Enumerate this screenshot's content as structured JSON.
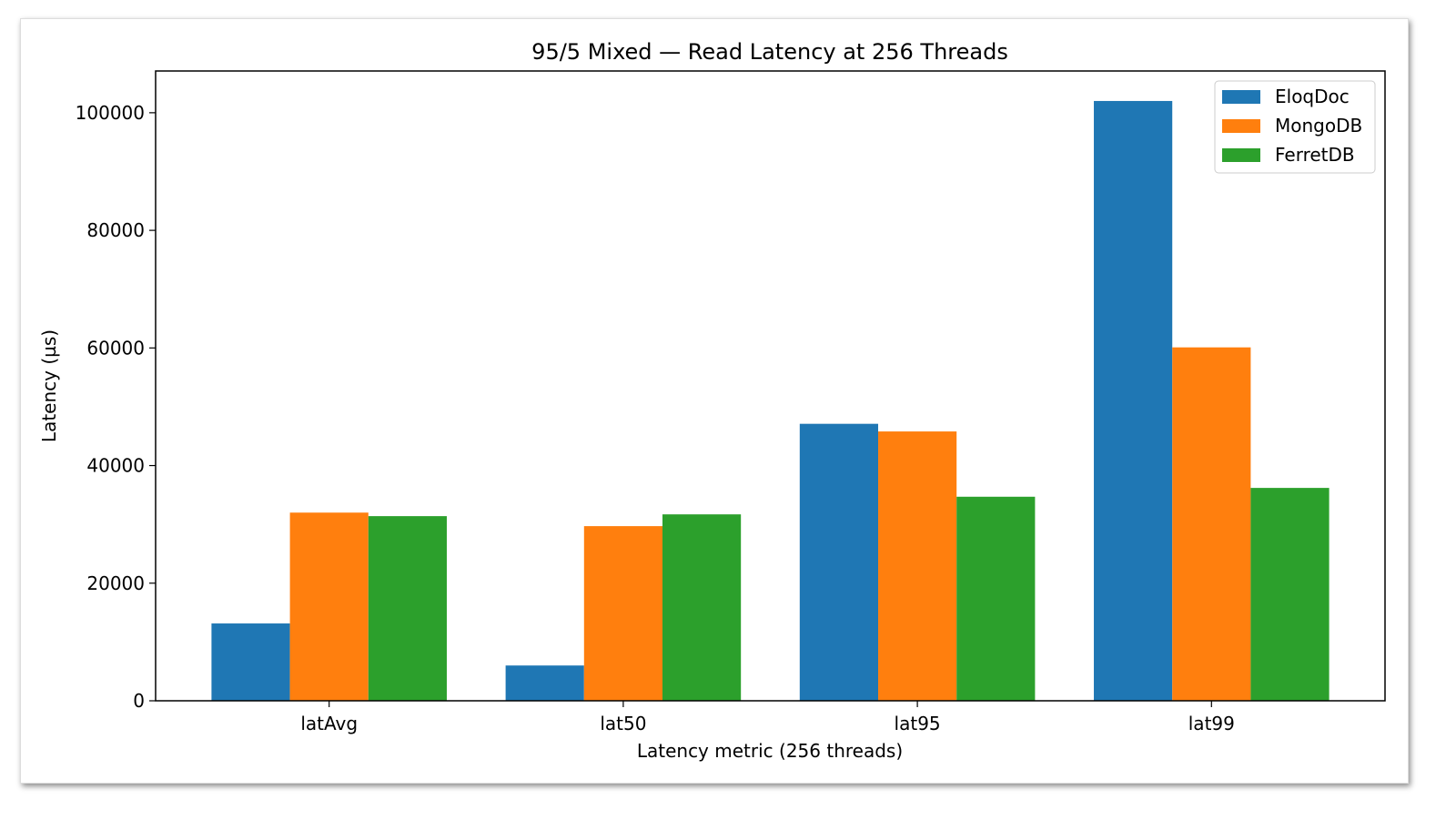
{
  "chart_data": {
    "type": "bar",
    "title": "95/5 Mixed — Read Latency at 256 Threads",
    "xlabel": "Latency metric (256 threads)",
    "ylabel": "Latency (µs)",
    "categories": [
      "latAvg",
      "lat50",
      "lat95",
      "lat99"
    ],
    "series": [
      {
        "name": "EloqDoc",
        "color": "#1f77b4",
        "values": [
          13150,
          6000,
          47100,
          102000
        ]
      },
      {
        "name": "MongoDB",
        "color": "#ff7f0e",
        "values": [
          32000,
          29700,
          45800,
          60100
        ]
      },
      {
        "name": "FerretDB",
        "color": "#2ca02c",
        "values": [
          31400,
          31700,
          34700,
          36200
        ]
      }
    ],
    "ylim": [
      0,
      107100
    ],
    "xlim": [
      -0.59,
      3.59
    ],
    "yticks": [
      0,
      20000,
      40000,
      60000,
      80000,
      100000
    ],
    "ytick_labels": [
      "0",
      "20000",
      "40000",
      "60000",
      "80000",
      "100000"
    ],
    "grid": false,
    "legend_position": "top-right"
  }
}
